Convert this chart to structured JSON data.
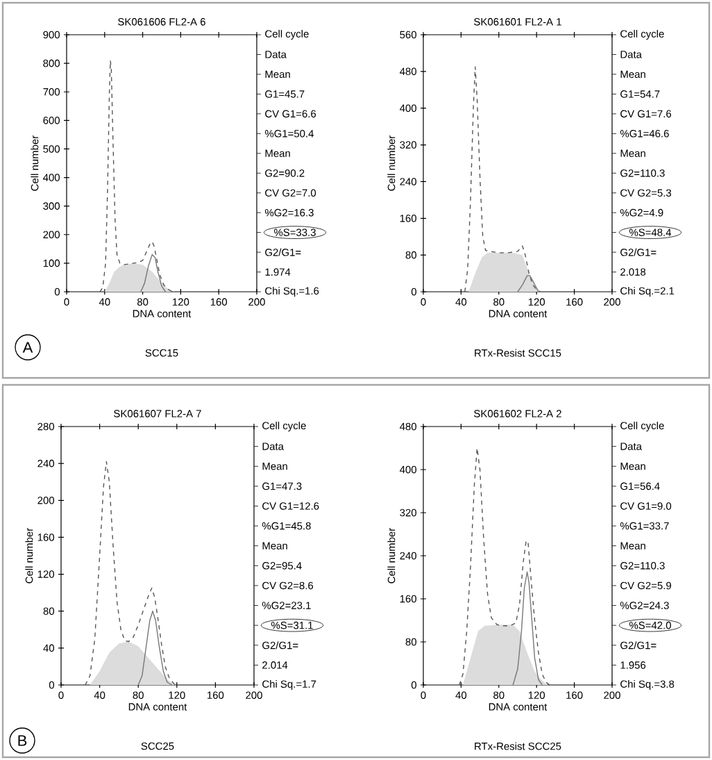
{
  "chart_data": [
    {
      "type": "line",
      "title": "SK061606 FL2-A 6",
      "subtitle": "SCC15",
      "xlabel": "DNA content",
      "ylabel": "Cell number",
      "xlim": [
        0,
        200
      ],
      "xticks": [
        0,
        40,
        80,
        120,
        160,
        200
      ],
      "ylim": [
        0,
        900
      ],
      "yticks": [
        0,
        100,
        200,
        300,
        400,
        500,
        600,
        700,
        800,
        900
      ],
      "annotations": [
        "Cell cycle",
        "Data",
        "Mean",
        "G1=45.7",
        "CV G1=6.6",
        "%G1=50.4",
        "Mean",
        "G2=90.2",
        "CV G2=7.0",
        "%G2=16.3",
        "%S=33.3",
        "G2/G1=",
        "1.974",
        "Chi Sq.=1.6",
        "A"
      ],
      "series": [
        {
          "type": "area",
          "color": "#dcdcdc",
          "x": [
            40,
            45,
            50,
            55,
            60,
            70,
            80,
            90,
            100,
            110
          ],
          "values": [
            0,
            30,
            70,
            85,
            95,
            100,
            95,
            70,
            30,
            0
          ]
        },
        {
          "type": "line",
          "line_style": "dashed",
          "color": "#555555",
          "x": [
            35,
            38,
            41,
            43,
            45,
            46,
            47,
            49,
            51,
            53,
            56,
            60,
            65,
            70,
            75,
            80,
            84,
            88,
            90,
            92,
            95,
            98,
            102,
            106,
            110,
            115
          ],
          "values": [
            0,
            15,
            100,
            350,
            700,
            810,
            780,
            500,
            250,
            130,
            100,
            95,
            97,
            100,
            102,
            110,
            140,
            170,
            175,
            160,
            110,
            60,
            25,
            10,
            3,
            0
          ]
        },
        {
          "type": "line",
          "line_style": "solid",
          "color": "#777777",
          "x": [
            78,
            82,
            86,
            90,
            93,
            96,
            100,
            104
          ],
          "values": [
            0,
            30,
            90,
            130,
            120,
            70,
            20,
            0
          ]
        }
      ]
    },
    {
      "type": "line",
      "title": "SK061601 FL2-A 1",
      "subtitle": "RTx-Resist SCC15",
      "xlabel": "DNA content",
      "ylabel": "Cell number",
      "xlim": [
        0,
        200
      ],
      "xticks": [
        0,
        40,
        80,
        120,
        160,
        200
      ],
      "ylim": [
        0,
        560
      ],
      "yticks": [
        0,
        80,
        160,
        240,
        320,
        400,
        480,
        560
      ],
      "annotations": [
        "Cell cycle",
        "Data",
        "Mean",
        "G1=54.7",
        "CV G1=7.6",
        "%G1=46.6",
        "Mean",
        "G2=110.3",
        "CV G2=5.3",
        "%G2=4.9",
        "%S=48.4",
        "G2/G1=",
        "2.018",
        "Chi Sq.=2.1"
      ],
      "series": [
        {
          "type": "area",
          "color": "#dcdcdc",
          "x": [
            48,
            55,
            62,
            68,
            80,
            95,
            105,
            112,
            118,
            124
          ],
          "values": [
            0,
            40,
            75,
            85,
            85,
            85,
            80,
            40,
            15,
            0
          ]
        },
        {
          "type": "line",
          "line_style": "dashed",
          "color": "#555555",
          "x": [
            44,
            47,
            50,
            53,
            55,
            57,
            60,
            63,
            66,
            70,
            80,
            90,
            100,
            105,
            108,
            112,
            116,
            120,
            124
          ],
          "values": [
            0,
            50,
            200,
            400,
            490,
            420,
            250,
            120,
            90,
            88,
            85,
            85,
            88,
            100,
            80,
            40,
            15,
            5,
            0
          ]
        },
        {
          "type": "line",
          "line_style": "solid",
          "color": "#777777",
          "x": [
            100,
            105,
            110,
            113,
            117,
            122
          ],
          "values": [
            0,
            15,
            35,
            35,
            20,
            0
          ]
        }
      ]
    },
    {
      "type": "line",
      "title": "SK061607 FL2-A 7",
      "subtitle": "SCC25",
      "xlabel": "DNA content",
      "ylabel": "Cell number",
      "xlim": [
        0,
        200
      ],
      "xticks": [
        0,
        40,
        80,
        120,
        160,
        200
      ],
      "ylim": [
        0,
        280
      ],
      "yticks": [
        0,
        40,
        80,
        120,
        160,
        200,
        240,
        280
      ],
      "annotations": [
        "Cell cycle",
        "Data",
        "Mean",
        "G1=47.3",
        "CV G1=12.6",
        "%G1=45.8",
        "Mean",
        "G2=95.4",
        "CV G2=8.6",
        "%G2=23.1",
        "%S=31.1",
        "G2/G1=",
        "2.014",
        "Chi Sq.=1.7",
        "B"
      ],
      "series": [
        {
          "type": "area",
          "color": "#dcdcdc",
          "x": [
            30,
            40,
            50,
            60,
            70,
            80,
            90,
            100,
            110,
            118
          ],
          "values": [
            0,
            15,
            35,
            45,
            47,
            42,
            30,
            18,
            6,
            0
          ]
        },
        {
          "type": "line",
          "line_style": "dashed",
          "color": "#555555",
          "x": [
            25,
            30,
            35,
            40,
            44,
            47,
            50,
            54,
            58,
            62,
            66,
            70,
            75,
            80,
            85,
            90,
            94,
            97,
            100,
            104,
            108,
            112,
            118
          ],
          "values": [
            0,
            10,
            50,
            140,
            215,
            242,
            220,
            150,
            90,
            60,
            48,
            47,
            52,
            65,
            80,
            95,
            105,
            95,
            75,
            45,
            20,
            8,
            0
          ]
        },
        {
          "type": "line",
          "line_style": "solid",
          "color": "#777777",
          "x": [
            80,
            84,
            88,
            92,
            95,
            98,
            102,
            106,
            110,
            115
          ],
          "values": [
            0,
            10,
            40,
            70,
            80,
            70,
            40,
            15,
            3,
            0
          ]
        }
      ]
    },
    {
      "type": "line",
      "title": "SK061602 FL2-A 2",
      "subtitle": "RTx-Resist SCC25",
      "xlabel": "DNA content",
      "ylabel": "Cell number",
      "xlim": [
        0,
        200
      ],
      "xticks": [
        0,
        40,
        80,
        120,
        160,
        200
      ],
      "ylim": [
        0,
        480
      ],
      "yticks": [
        0,
        80,
        160,
        240,
        320,
        400,
        480
      ],
      "annotations": [
        "Cell cycle",
        "Data",
        "Mean",
        "G1=56.4",
        "CV G1=9.0",
        "%G1=33.7",
        "Mean",
        "G2=110.3",
        "CV G2=5.9",
        "%G2=24.3",
        "%S=42.0",
        "G2/G1=",
        "1.956",
        "Chi Sq.=3.8"
      ],
      "series": [
        {
          "type": "area",
          "color": "#dcdcdc",
          "x": [
            42,
            50,
            58,
            65,
            80,
            95,
            102,
            110,
            118,
            126,
            132
          ],
          "values": [
            0,
            50,
            100,
            110,
            112,
            112,
            100,
            60,
            25,
            8,
            0
          ]
        },
        {
          "type": "line",
          "line_style": "dashed",
          "color": "#555555",
          "x": [
            38,
            42,
            46,
            50,
            54,
            57,
            60,
            64,
            68,
            72,
            78,
            85,
            92,
            98,
            102,
            106,
            109,
            111,
            114,
            118,
            122,
            126,
            130,
            134
          ],
          "values": [
            0,
            20,
            100,
            220,
            370,
            440,
            400,
            270,
            170,
            125,
            112,
            110,
            110,
            115,
            150,
            230,
            268,
            265,
            200,
            120,
            60,
            20,
            5,
            0
          ]
        },
        {
          "type": "line",
          "line_style": "solid",
          "color": "#777777",
          "x": [
            95,
            100,
            104,
            107,
            110,
            112,
            115,
            118,
            122,
            126
          ],
          "values": [
            0,
            30,
            100,
            180,
            210,
            190,
            120,
            50,
            10,
            0
          ]
        }
      ]
    }
  ]
}
